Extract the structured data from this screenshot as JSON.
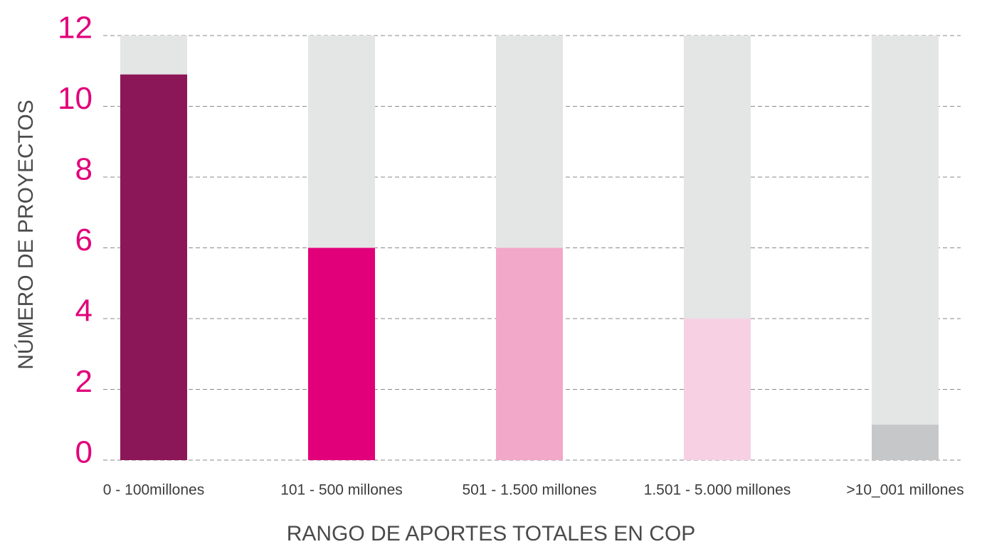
{
  "chart_data": {
    "type": "bar",
    "categories": [
      "0 - 100millones",
      "101 - 500 millones",
      "501 - 1.500 millones",
      "1.501 - 5.000 millones",
      ">10_001 millones"
    ],
    "values": [
      10.9,
      6,
      6,
      4,
      1
    ],
    "colors": [
      "#8b1758",
      "#e2007a",
      "#f2a8c8",
      "#f8d0e3",
      "#c6c7c8"
    ],
    "track_color": "#e4e5e5",
    "xlabel": "RANGO DE APORTES TOTALES EN COP",
    "ylabel": "NÚMERO DE PROYECTOS",
    "ylim": [
      0,
      12
    ],
    "yticks": [
      0,
      2,
      4,
      6,
      8,
      10,
      12
    ],
    "grid": true
  }
}
